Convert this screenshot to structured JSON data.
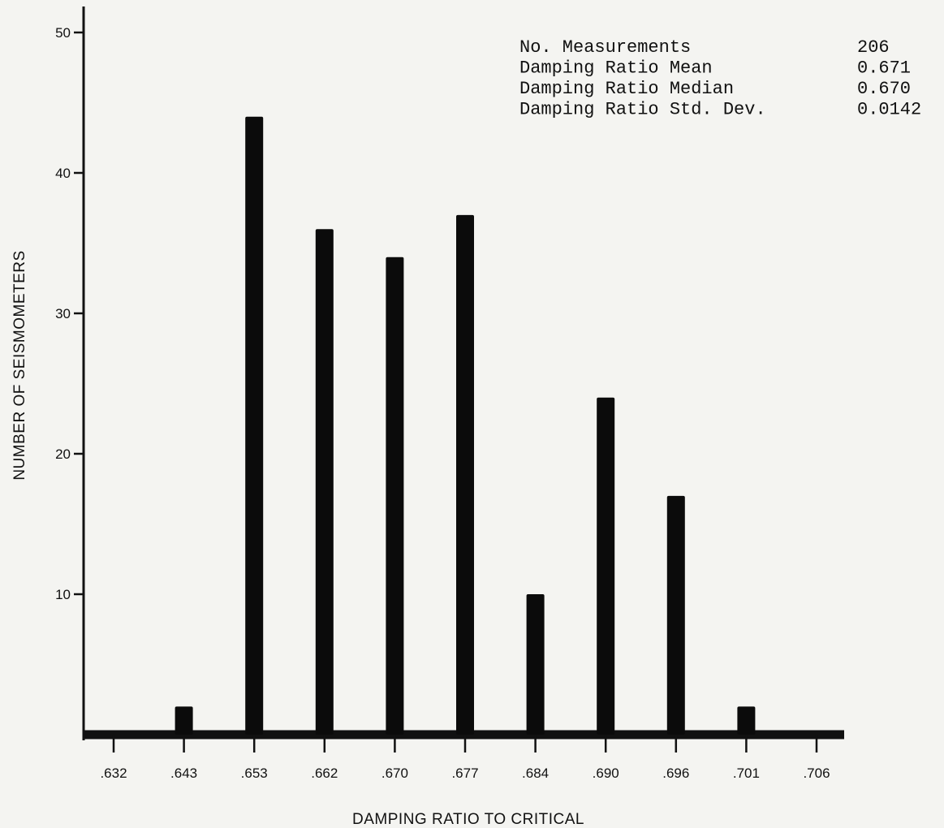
{
  "chart_data": {
    "type": "bar",
    "categories": [
      ".632",
      ".643",
      ".653",
      ".662",
      ".670",
      ".677",
      ".684",
      ".690",
      ".696",
      ".701",
      ".706"
    ],
    "values": [
      0,
      2,
      44,
      36,
      34,
      37,
      10,
      24,
      17,
      2,
      0
    ],
    "xlabel": "DAMPING RATIO TO CRITICAL",
    "ylabel": "NUMBER OF SEISMOMETERS",
    "yticks": [
      10,
      20,
      30,
      40,
      50
    ],
    "ylim": [
      0,
      50
    ],
    "grid": false,
    "stats": [
      {
        "label": "No. Measurements",
        "value": "206"
      },
      {
        "label": "Damping Ratio Mean",
        "value": "0.671"
      },
      {
        "label": "Damping Ratio Median",
        "value": "0.670"
      },
      {
        "label": "Damping Ratio Std. Dev.",
        "value": "0.0142"
      }
    ],
    "stats_placement": "top-right"
  }
}
